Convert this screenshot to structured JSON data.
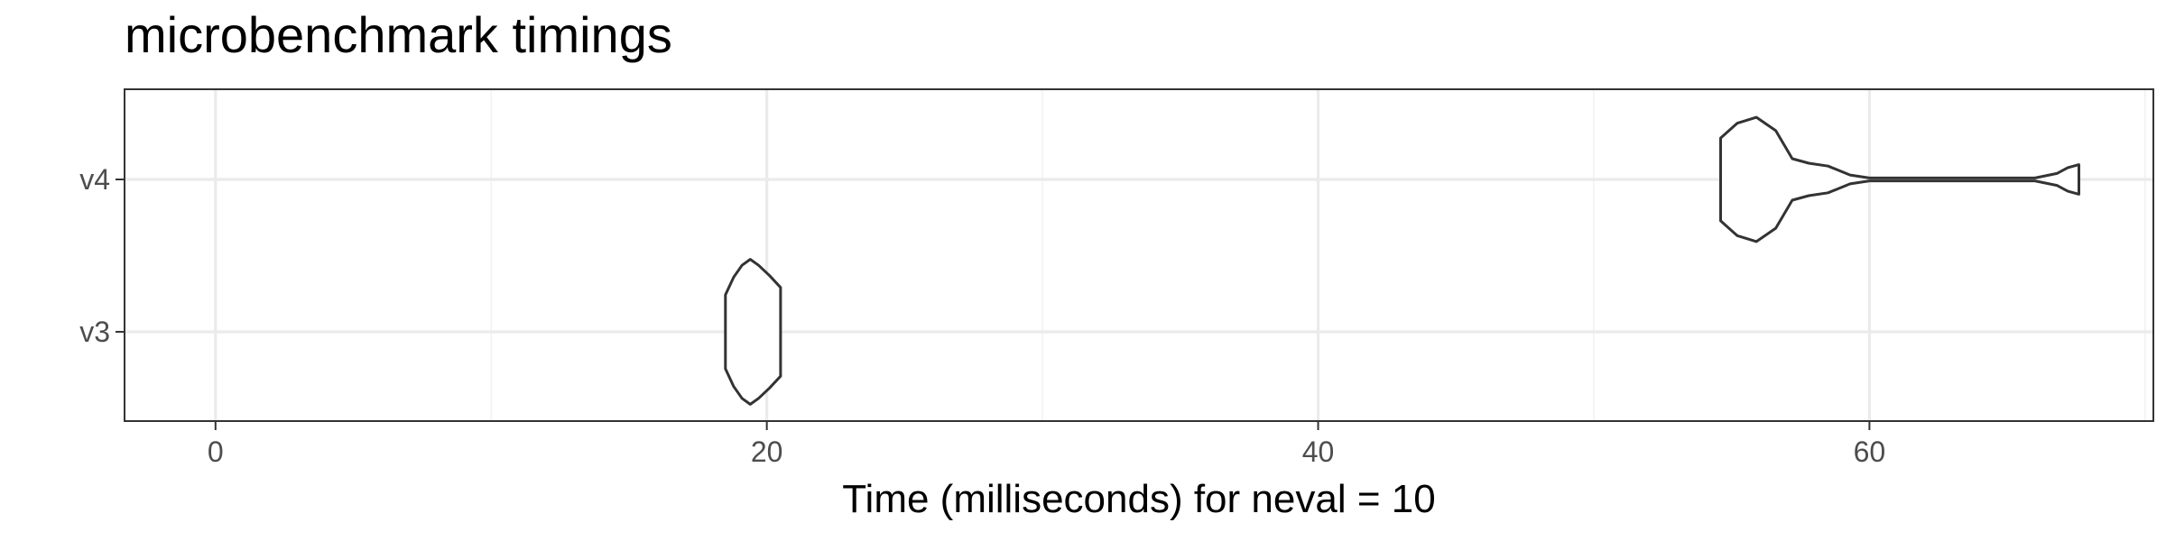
{
  "chart_data": {
    "type": "violin",
    "title": "microbenchmark timings",
    "xlabel": "Time (milliseconds) for neval = 10",
    "ylabel": "",
    "xlim": [
      -3.3,
      70.3
    ],
    "x_ticks": [
      0,
      20,
      40,
      60
    ],
    "x_minor_ticks": [
      10,
      30,
      50,
      70
    ],
    "categories": [
      "v3",
      "v4"
    ],
    "orientation": "horizontal",
    "grid": true,
    "theme": "bw",
    "series": [
      {
        "category": "v3",
        "min": 18.5,
        "max": 20.5,
        "density": [
          [
            18.5,
            0.25
          ],
          [
            18.8,
            0.37
          ],
          [
            19.1,
            0.45
          ],
          [
            19.4,
            0.49
          ],
          [
            19.7,
            0.45
          ],
          [
            20.1,
            0.38
          ],
          [
            20.5,
            0.3
          ]
        ]
      },
      {
        "category": "v4",
        "min": 54.6,
        "max": 67.6,
        "density": [
          [
            54.6,
            0.28
          ],
          [
            55.2,
            0.38
          ],
          [
            55.9,
            0.42
          ],
          [
            56.6,
            0.33
          ],
          [
            57.2,
            0.14
          ],
          [
            57.8,
            0.11
          ],
          [
            58.5,
            0.09
          ],
          [
            59.3,
            0.03
          ],
          [
            60.0,
            0.01
          ],
          [
            63.0,
            0.01
          ],
          [
            66.0,
            0.01
          ],
          [
            66.8,
            0.04
          ],
          [
            67.2,
            0.08
          ],
          [
            67.6,
            0.1
          ]
        ]
      }
    ]
  }
}
